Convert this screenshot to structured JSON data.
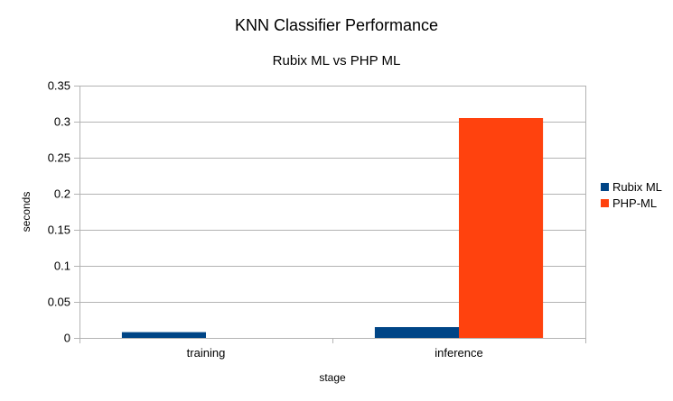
{
  "chart_data": {
    "type": "bar",
    "title": "KNN Classifier Performance",
    "subtitle": "Rubix ML vs PHP ML",
    "xlabel": "stage",
    "ylabel": "seconds",
    "categories": [
      "training",
      "inference"
    ],
    "series": [
      {
        "name": "Rubix ML",
        "color": "#004586",
        "values": [
          0.008,
          0.015
        ]
      },
      {
        "name": "PHP-ML",
        "color": "#ff420e",
        "values": [
          0.0,
          0.305
        ]
      }
    ],
    "ylim": [
      0,
      0.35
    ],
    "yticks": [
      0,
      0.05,
      0.1,
      0.15,
      0.2,
      0.25,
      0.3,
      0.35
    ],
    "ytick_labels": [
      "0",
      "0.05",
      "0.1",
      "0.15",
      "0.2",
      "0.25",
      "0.3",
      "0.35"
    ],
    "grid": true,
    "legend_position": "right"
  }
}
